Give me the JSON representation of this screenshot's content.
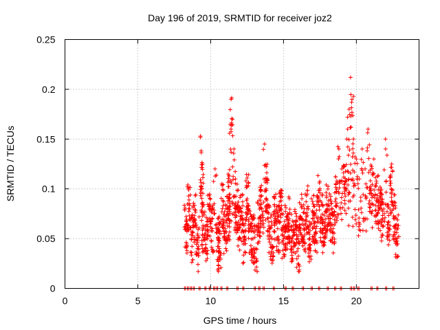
{
  "chart_data": {
    "type": "scatter",
    "title": "Day 196 of 2019, SRMTID for receiver joz2",
    "xlabel": "GPS time / hours",
    "ylabel": "SRMTID / TECUs",
    "xlim": [
      0,
      24.3
    ],
    "ylim": [
      0,
      0.25
    ],
    "xticks": [
      0,
      5,
      10,
      15,
      20
    ],
    "xtick_labels": [
      "0",
      "5",
      "10",
      "15",
      "20"
    ],
    "yticks": [
      0,
      0.05,
      0.1,
      0.15,
      0.2,
      0.25
    ],
    "ytick_labels": [
      "0",
      "0.05",
      "0.1",
      "0.15",
      "0.2",
      "0.25"
    ],
    "grid": true,
    "marker": "plus",
    "series": [
      {
        "name": "SRMTID",
        "color": "#ff0000",
        "x": [
          8.3,
          8.5,
          8.7,
          8.9,
          9.1,
          9.3,
          9.4,
          9.5,
          9.7,
          9.9,
          10.1,
          10.3,
          10.5,
          10.6,
          10.8,
          11.0,
          11.2,
          11.3,
          11.4,
          11.5,
          11.6,
          11.7,
          11.8,
          11.9,
          12.1,
          12.3,
          12.5,
          12.7,
          12.9,
          13.1,
          13.3,
          13.5,
          13.7,
          13.8,
          14.0,
          14.2,
          14.4,
          14.6,
          14.8,
          15.0,
          15.2,
          15.4,
          15.6,
          15.8,
          16.0,
          16.2,
          16.4,
          16.6,
          16.8,
          17.0,
          17.2,
          17.4,
          17.6,
          17.8,
          18.0,
          18.2,
          18.4,
          18.6,
          18.8,
          19.0,
          19.2,
          19.4,
          19.5,
          19.6,
          19.7,
          19.8,
          20.0,
          20.2,
          20.4,
          20.6,
          20.8,
          21.0,
          21.2,
          21.4,
          21.6,
          21.8,
          22.0,
          22.2,
          22.4,
          22.6,
          22.8
        ],
        "y": [
          0.06,
          0.08,
          0.05,
          0.07,
          0.04,
          0.153,
          0.1,
          0.06,
          0.05,
          0.07,
          0.06,
          0.12,
          0.05,
          0.04,
          0.08,
          0.06,
          0.07,
          0.09,
          0.19,
          0.17,
          0.14,
          0.11,
          0.08,
          0.06,
          0.07,
          0.05,
          0.09,
          0.06,
          0.05,
          0.04,
          0.07,
          0.08,
          0.145,
          0.1,
          0.06,
          0.05,
          0.07,
          0.06,
          0.08,
          0.05,
          0.06,
          0.07,
          0.05,
          0.06,
          0.04,
          0.07,
          0.06,
          0.08,
          0.05,
          0.07,
          0.06,
          0.09,
          0.07,
          0.06,
          0.08,
          0.07,
          0.06,
          0.09,
          0.14,
          0.12,
          0.1,
          0.16,
          0.18,
          0.212,
          0.19,
          0.15,
          0.13,
          0.11,
          0.14,
          0.12,
          0.16,
          0.1,
          0.13,
          0.09,
          0.08,
          0.07,
          0.15,
          0.06,
          0.1,
          0.07,
          0.05
        ],
        "zero_x": [
          8.2,
          8.4,
          8.6,
          8.8,
          9.2,
          9.6,
          9.9,
          10.2,
          10.4,
          10.7,
          11.1,
          11.8,
          12.2,
          13.0,
          13.3,
          13.6,
          14.3,
          15.1,
          15.6,
          16.3,
          16.9,
          17.4,
          18.0,
          18.5,
          18.9,
          19.6,
          19.8,
          20.1,
          21.0,
          21.4,
          22.0,
          22.5
        ]
      }
    ]
  }
}
